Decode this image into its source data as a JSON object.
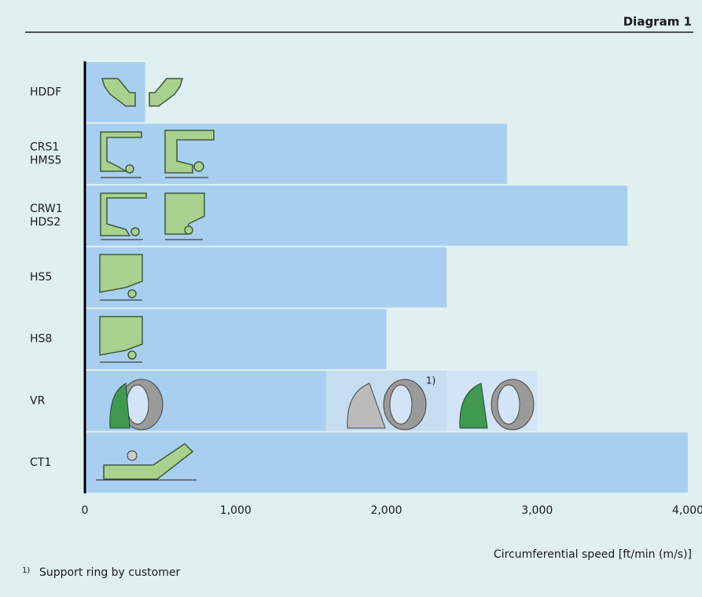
{
  "chart_data": {
    "type": "bar",
    "orientation": "horizontal",
    "stacked": true,
    "title": "Diagram 1",
    "categories": [
      "HDDF",
      [
        "CRS1",
        "HMS5"
      ],
      [
        "CRW1",
        "HDS2"
      ],
      "HS5",
      "HS8",
      "VR",
      "CT1"
    ],
    "series": [
      {
        "color": "#a9cff0",
        "values": [
          400,
          2800,
          3600,
          2400,
          2000,
          1600,
          4000
        ]
      },
      {
        "color": "#c6dcef",
        "values": [
          null,
          null,
          null,
          null,
          null,
          800,
          null
        ]
      },
      {
        "color": "#d3e4f6",
        "values": [
          null,
          null,
          null,
          null,
          null,
          600,
          null
        ]
      }
    ],
    "annotation": "1)",
    "xlim": [
      0,
      4000
    ],
    "xticks": [
      0,
      {
        "value": 1000,
        "label": "1,000"
      },
      {
        "value": 2000,
        "label": "2,000"
      },
      {
        "value": 3000,
        "label": "3,000"
      },
      {
        "value": 4000,
        "label": "4,000"
      }
    ],
    "xlabel": "Circumferential speed [ft/min (m/s)]",
    "footnote": {
      "marker": "1)",
      "text": "Support ring by customer"
    },
    "background": "#e0f0f0"
  }
}
